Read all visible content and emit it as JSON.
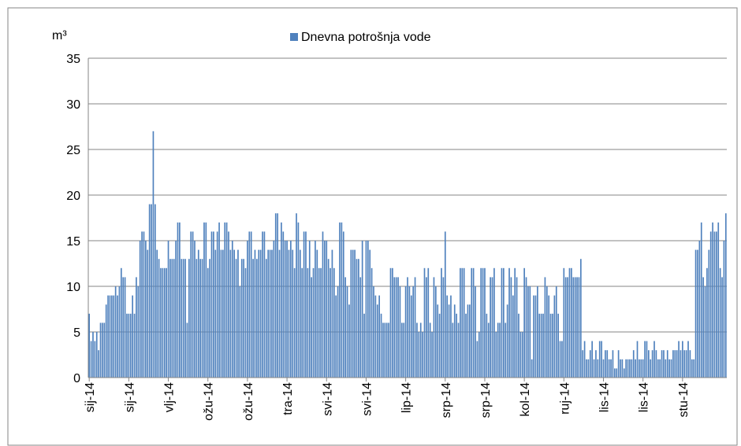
{
  "chart_data": {
    "type": "bar",
    "ylabel": "m³",
    "series": [
      {
        "name": "Dnevna potrošnja vode",
        "color": "#4f81bd",
        "values": [
          7,
          4,
          5,
          4,
          5,
          3,
          6,
          6,
          6,
          8,
          9,
          9,
          9,
          9,
          10,
          9,
          10,
          12,
          11,
          11,
          7,
          7,
          7,
          9,
          7,
          11,
          10,
          15,
          16,
          16,
          15,
          14,
          19,
          19,
          27,
          19,
          14,
          13,
          12,
          12,
          12,
          12,
          15,
          13,
          13,
          13,
          15,
          17,
          17,
          13,
          13,
          13,
          6,
          13,
          16,
          16,
          15,
          13,
          14,
          13,
          13,
          17,
          17,
          12,
          13,
          16,
          16,
          14,
          16,
          17,
          14,
          14,
          17,
          17,
          16,
          14,
          15,
          14,
          13,
          14,
          10,
          13,
          13,
          12,
          15,
          16,
          16,
          13,
          14,
          13,
          14,
          14,
          16,
          16,
          13,
          14,
          14,
          14,
          15,
          18,
          18,
          14,
          17,
          16,
          15,
          15,
          14,
          15,
          14,
          12,
          18,
          17,
          14,
          12,
          16,
          16,
          12,
          15,
          11,
          12,
          15,
          14,
          12,
          12,
          16,
          15,
          15,
          13,
          12,
          14,
          12,
          9,
          10,
          17,
          17,
          16,
          11,
          10,
          8,
          14,
          14,
          14,
          13,
          13,
          11,
          15,
          7,
          15,
          15,
          14,
          12,
          10,
          9,
          8,
          9,
          7,
          6,
          6,
          6,
          6,
          12,
          12,
          11,
          11,
          11,
          10,
          6,
          6,
          10,
          11,
          10,
          9,
          10,
          11,
          6,
          5,
          6,
          5,
          12,
          11,
          12,
          6,
          5,
          11,
          10,
          8,
          7,
          12,
          11,
          16,
          9,
          8,
          9,
          6,
          8,
          7,
          6,
          12,
          12,
          12,
          7,
          8,
          8,
          12,
          12,
          10,
          4,
          5,
          12,
          12,
          12,
          7,
          6,
          11,
          11,
          12,
          5,
          6,
          6,
          12,
          12,
          6,
          8,
          12,
          11,
          9,
          12,
          11,
          7,
          5,
          5,
          12,
          11,
          10,
          10,
          2,
          9,
          9,
          10,
          7,
          7,
          7,
          11,
          10,
          9,
          7,
          7,
          9,
          10,
          7,
          4,
          4,
          12,
          11,
          11,
          12,
          12,
          11,
          11,
          11,
          11,
          13,
          3,
          4,
          2,
          2,
          3,
          4,
          2,
          3,
          2,
          4,
          4,
          2,
          3,
          3,
          2,
          2,
          3,
          1,
          1,
          3,
          2,
          2,
          1,
          2,
          2,
          2,
          2,
          3,
          2,
          4,
          2,
          2,
          2,
          4,
          4,
          3,
          2,
          3,
          4,
          3,
          2,
          2,
          3,
          3,
          2,
          3,
          2,
          2,
          3,
          3,
          3,
          4,
          3,
          4,
          3,
          3,
          4,
          3,
          2,
          2,
          14,
          14,
          15,
          17,
          11,
          10,
          12,
          14,
          16,
          17,
          16,
          16,
          17,
          12,
          11,
          15,
          18
        ]
      }
    ],
    "categories": [
      "sij-14",
      null,
      null,
      null,
      null,
      null,
      null,
      null,
      null,
      null,
      null,
      null,
      null,
      null,
      null,
      null,
      null,
      null,
      null,
      null,
      null,
      "sij-14",
      null,
      null,
      null,
      null,
      null,
      null,
      null,
      null,
      null,
      null,
      null,
      null,
      null,
      null,
      null,
      null,
      null,
      null,
      null,
      null,
      "vlj-14",
      null,
      null,
      null,
      null,
      null,
      null,
      null,
      null,
      null,
      null,
      null,
      null,
      null,
      null,
      null,
      null,
      null,
      null,
      null,
      null,
      "ožu-14",
      null,
      null,
      null,
      null,
      null,
      null,
      null,
      null,
      null,
      null,
      null,
      null,
      null,
      null,
      null,
      null,
      null,
      null,
      null,
      null,
      "ožu-14",
      null,
      null,
      null,
      null,
      null,
      null,
      null,
      null,
      null,
      null,
      null,
      null,
      null,
      null,
      null,
      null,
      null,
      null,
      null,
      null,
      "tra-14",
      null,
      null,
      null,
      null,
      null,
      null,
      null,
      null,
      null,
      null,
      null,
      null,
      null,
      null,
      null,
      null,
      null,
      null,
      null,
      null,
      "svi-14",
      null,
      null,
      null,
      null,
      null,
      null,
      null,
      null,
      null,
      null,
      null,
      null,
      null,
      null,
      null,
      null,
      null,
      null,
      null,
      null,
      "svi-14",
      null,
      null,
      null,
      null,
      null,
      null,
      null,
      null,
      null,
      null,
      null,
      null,
      null,
      null,
      null,
      null,
      null,
      null,
      null,
      null,
      "lip-14",
      null,
      null,
      null,
      null,
      null,
      null,
      null,
      null,
      null,
      null,
      null,
      null,
      null,
      null,
      null,
      null,
      null,
      null,
      null,
      null,
      "srp-14",
      null,
      null,
      null,
      null,
      null,
      null,
      null,
      null,
      null,
      null,
      null,
      null,
      null,
      null,
      null,
      null,
      null,
      null,
      null,
      null,
      "srp-14",
      null,
      null,
      null,
      null,
      null,
      null,
      null,
      null,
      null,
      null,
      null,
      null,
      null,
      null,
      null,
      null,
      null,
      null,
      null,
      null,
      "kol-14",
      null,
      null,
      null,
      null,
      null,
      null,
      null,
      null,
      null,
      null,
      null,
      null,
      null,
      null,
      null,
      null,
      null,
      null,
      null,
      null,
      "ruj-14",
      null,
      null,
      null,
      null,
      null,
      null,
      null,
      null,
      null,
      null,
      null,
      null,
      null,
      null,
      null,
      null,
      null,
      null,
      null,
      null,
      "lis-14",
      null,
      null,
      null,
      null,
      null,
      null,
      null,
      null,
      null,
      null,
      null,
      null,
      null,
      null,
      null,
      null,
      null,
      null,
      null,
      null,
      "lis-14",
      null,
      null,
      null,
      null,
      null,
      null,
      null,
      null,
      null,
      null,
      null,
      null,
      null,
      null,
      null,
      null,
      null,
      null,
      null,
      null,
      "stu-14",
      null,
      null,
      null,
      null,
      null,
      null,
      null,
      null,
      null,
      null,
      null,
      null,
      null,
      null,
      null,
      null,
      null,
      null,
      null,
      null,
      null,
      null,
      null
    ],
    "ylim": [
      0,
      35
    ],
    "yticks": [
      0,
      5,
      10,
      15,
      20,
      25,
      30,
      35
    ],
    "grid": true,
    "legend": "top"
  }
}
